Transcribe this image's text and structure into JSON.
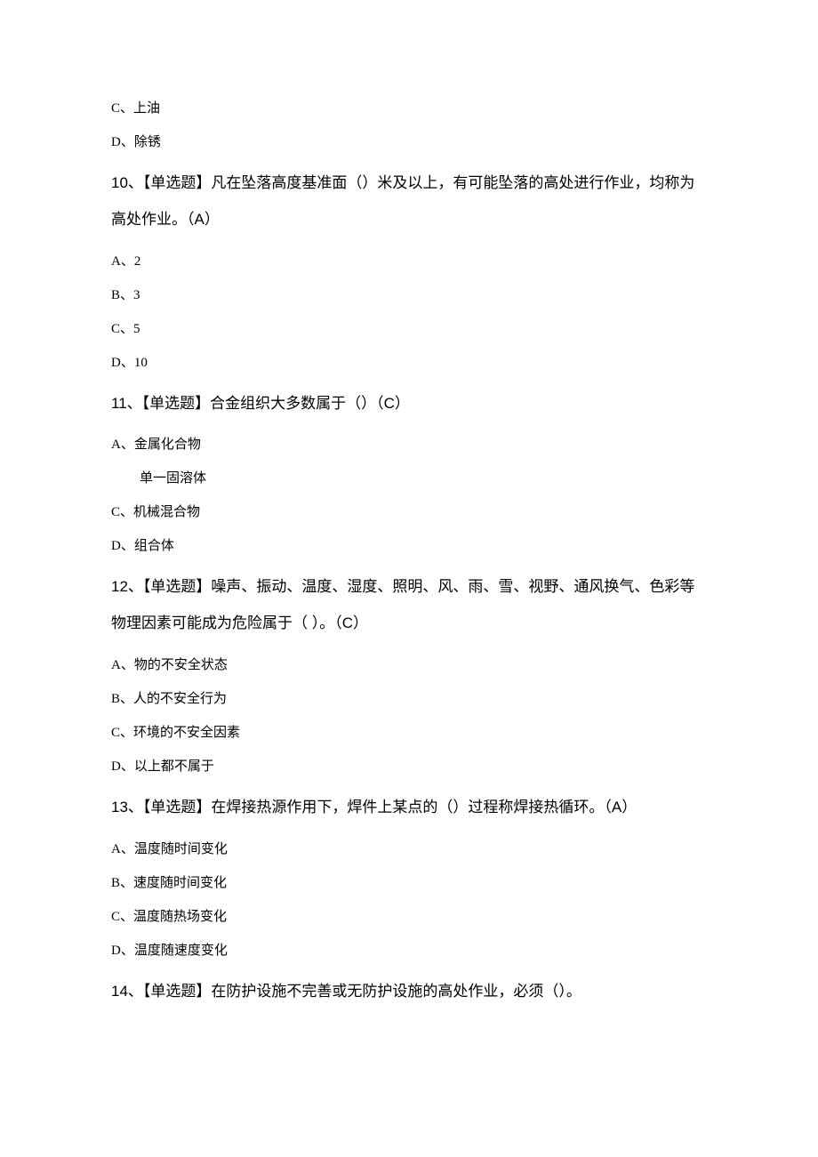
{
  "q9": {
    "optionC": "C、上油",
    "optionD": "D、除锈"
  },
  "q10": {
    "text": "10、【单选题】凡在坠落高度基准面（）米及以上，有可能坠落的高处进行作业，均称为高处作业。（A）",
    "optionA": "A、2",
    "optionB": "B、3",
    "optionC": "C、5",
    "optionD": "D、10"
  },
  "q11": {
    "text": "11、【单选题】合金组织大多数属于（）（C）",
    "optionA": "A、金属化合物",
    "optionB_text": "单一固溶体",
    "optionC": "C、机械混合物",
    "optionD": "D、组合体"
  },
  "q12": {
    "text": "12、【单选题】噪声、振动、温度、湿度、照明、风、雨、雪、视野、通风换气、色彩等物理因素可能成为危险属于（ ）。（C）",
    "optionA": "A、物的不安全状态",
    "optionB": "B、人的不安全行为",
    "optionC": "C、环境的不安全因素",
    "optionD": "D、以上都不属于"
  },
  "q13": {
    "text": "13、【单选题】在焊接热源作用下，焊件上某点的（）过程称焊接热循环。（A）",
    "optionA": "A、温度随时间变化",
    "optionB": "B、速度随时间变化",
    "optionC": "C、温度随热场变化",
    "optionD": "D、温度随速度变化"
  },
  "q14": {
    "text": "14、【单选题】在防护设施不完善或无防护设施的高处作业，必须（）。"
  }
}
